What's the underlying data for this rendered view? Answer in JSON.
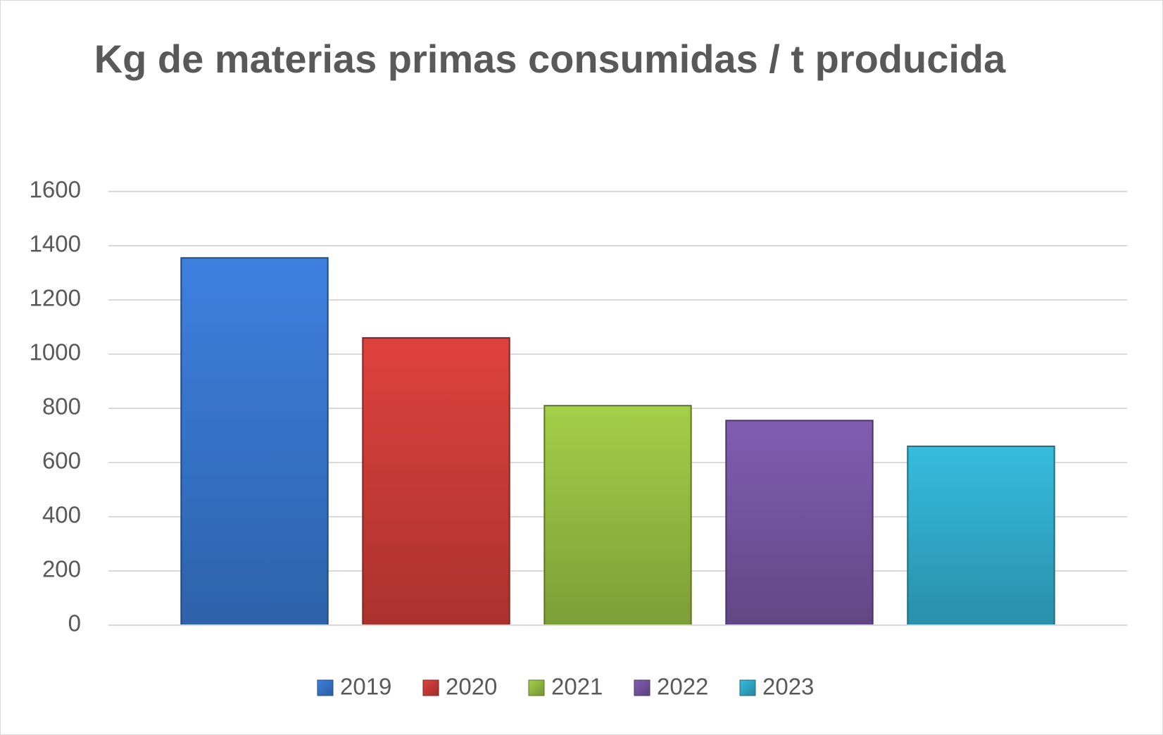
{
  "chart_data": {
    "type": "bar",
    "title": "Kg de materias primas consumidas / t producida",
    "categories": [
      null
    ],
    "series": [
      {
        "name": "2019",
        "color": "#3a7bd5",
        "values": [
          1355
        ]
      },
      {
        "name": "2020",
        "color": "#d43f3a",
        "values": [
          1060
        ]
      },
      {
        "name": "2021",
        "color": "#9bc545",
        "values": [
          810
        ]
      },
      {
        "name": "2022",
        "color": "#7b59a8",
        "values": [
          755
        ]
      },
      {
        "name": "2023",
        "color": "#33b3d3",
        "values": [
          660
        ]
      }
    ],
    "ylim": [
      0,
      1600
    ],
    "yticks": [
      0,
      200,
      400,
      600,
      800,
      1000,
      1200,
      1400,
      1600
    ],
    "grid": true,
    "legend": "bottom"
  }
}
